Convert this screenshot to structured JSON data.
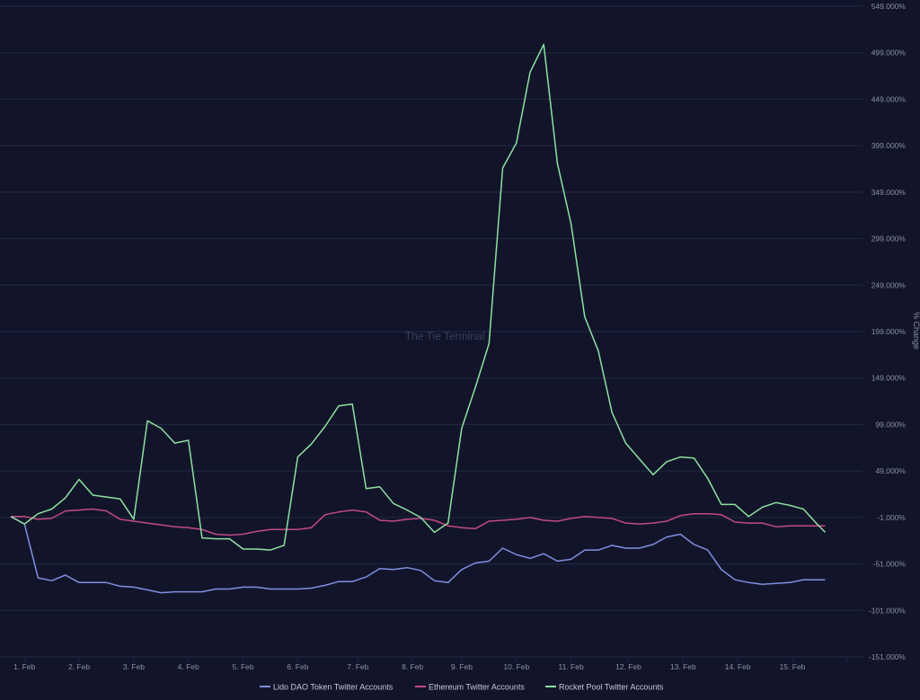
{
  "watermark": "The Tie Terminal",
  "colors": {
    "background": "#12152a",
    "grid": "#232845",
    "tick_text": "#8a8ea6",
    "legend_text": "#c6c8d6",
    "watermark": "#3a3f5c"
  },
  "chart_data": {
    "type": "line",
    "title": "",
    "xlabel": "",
    "ylabel": "% Change",
    "xlim": [
      0,
      15.5
    ],
    "ylim": [
      -151,
      549
    ],
    "y_ticks": [
      549,
      499,
      449,
      399,
      349,
      299,
      249,
      199,
      149,
      99,
      49,
      -1,
      -51,
      -101,
      -151
    ],
    "y_tick_labels": [
      "549.000%",
      "499.000%",
      "449.000%",
      "399.000%",
      "349.000%",
      "299.000%",
      "249.000%",
      "199.000%",
      "149.000%",
      "99.000%",
      "49.000%",
      "-1.000%",
      "-51.000%",
      "-101.000%",
      "-151.000%"
    ],
    "x_ticks": [
      0.25,
      1.25,
      2.25,
      3.25,
      4.25,
      5.25,
      6.35,
      7.35,
      8.25,
      9.25,
      10.25,
      11.3,
      12.3,
      13.3,
      14.3,
      15.3
    ],
    "x_tick_labels": [
      "1. Feb",
      "2. Feb",
      "3. Feb",
      "4. Feb",
      "5. Feb",
      "6. Feb",
      "7. Feb",
      "8. Feb",
      "9. Feb",
      "10. Feb",
      "11. Feb",
      "12. Feb",
      "13. Feb",
      "14. Feb",
      "15. Feb",
      ""
    ],
    "legend_position": "bottom-center",
    "grid": true,
    "series": [
      {
        "name": "Lido DAO Token Twitter Accounts",
        "color": "#7f8fe0",
        "points": [
          [
            0,
            0
          ],
          [
            0.25,
            -8
          ],
          [
            0.5,
            -66
          ],
          [
            0.75,
            -69
          ],
          [
            1.0,
            -63
          ],
          [
            1.25,
            -71
          ],
          [
            1.5,
            -71
          ],
          [
            1.75,
            -71
          ],
          [
            2.0,
            -75
          ],
          [
            2.25,
            -76
          ],
          [
            2.5,
            -79
          ],
          [
            2.75,
            -82
          ],
          [
            3.0,
            -81
          ],
          [
            3.25,
            -81
          ],
          [
            3.5,
            -81
          ],
          [
            3.75,
            -78
          ],
          [
            4.0,
            -78
          ],
          [
            4.25,
            -76
          ],
          [
            4.5,
            -76
          ],
          [
            4.75,
            -78
          ],
          [
            5.0,
            -78
          ],
          [
            5.25,
            -78
          ],
          [
            5.5,
            -77
          ],
          [
            5.75,
            -74
          ],
          [
            6.0,
            -70
          ],
          [
            6.25,
            -70
          ],
          [
            6.5,
            -65
          ],
          [
            6.75,
            -56
          ],
          [
            7.0,
            -57
          ],
          [
            7.25,
            -55
          ],
          [
            7.5,
            -58
          ],
          [
            7.75,
            -69
          ],
          [
            8.0,
            -71
          ],
          [
            8.25,
            -57
          ],
          [
            8.5,
            -50
          ],
          [
            8.75,
            -48
          ],
          [
            9.0,
            -34
          ],
          [
            9.25,
            -41
          ],
          [
            9.5,
            -45
          ],
          [
            9.75,
            -40
          ],
          [
            10.0,
            -48
          ],
          [
            10.25,
            -46
          ],
          [
            10.5,
            -36
          ],
          [
            10.75,
            -36
          ],
          [
            11.0,
            -31
          ],
          [
            11.25,
            -34
          ],
          [
            11.5,
            -34
          ],
          [
            11.75,
            -30
          ],
          [
            12.0,
            -22
          ],
          [
            12.25,
            -19
          ],
          [
            12.5,
            -30
          ],
          [
            12.75,
            -36
          ],
          [
            13.0,
            -57
          ],
          [
            13.25,
            -68
          ],
          [
            13.5,
            -71
          ],
          [
            13.75,
            -73
          ],
          [
            14.0,
            -72
          ],
          [
            14.25,
            -71
          ],
          [
            14.5,
            -68
          ],
          [
            14.75,
            -68
          ],
          [
            14.9,
            -68
          ]
        ]
      },
      {
        "name": "Ethereum Twitter Accounts",
        "color": "#c24a82",
        "points": [
          [
            0,
            0
          ],
          [
            0.25,
            0
          ],
          [
            0.5,
            -3
          ],
          [
            0.75,
            -2
          ],
          [
            1.0,
            6
          ],
          [
            1.25,
            7
          ],
          [
            1.5,
            8
          ],
          [
            1.75,
            6
          ],
          [
            2.0,
            -3
          ],
          [
            2.25,
            -5
          ],
          [
            2.5,
            -7
          ],
          [
            2.75,
            -9
          ],
          [
            3.0,
            -11
          ],
          [
            3.25,
            -12
          ],
          [
            3.5,
            -14
          ],
          [
            3.75,
            -19
          ],
          [
            4.0,
            -20
          ],
          [
            4.25,
            -19
          ],
          [
            4.5,
            -16
          ],
          [
            4.75,
            -14
          ],
          [
            5.0,
            -14
          ],
          [
            5.25,
            -14
          ],
          [
            5.5,
            -12
          ],
          [
            5.75,
            2
          ],
          [
            6.0,
            5
          ],
          [
            6.25,
            7
          ],
          [
            6.5,
            5
          ],
          [
            6.75,
            -4
          ],
          [
            7.0,
            -5
          ],
          [
            7.25,
            -3
          ],
          [
            7.5,
            -2
          ],
          [
            7.75,
            -4
          ],
          [
            8.0,
            -10
          ],
          [
            8.25,
            -12
          ],
          [
            8.5,
            -13
          ],
          [
            8.75,
            -5
          ],
          [
            9.0,
            -4
          ],
          [
            9.25,
            -3
          ],
          [
            9.5,
            -1
          ],
          [
            9.75,
            -4
          ],
          [
            10.0,
            -5
          ],
          [
            10.25,
            -2
          ],
          [
            10.5,
            0
          ],
          [
            10.75,
            -1
          ],
          [
            11.0,
            -2
          ],
          [
            11.25,
            -7
          ],
          [
            11.5,
            -8
          ],
          [
            11.75,
            -7
          ],
          [
            12.0,
            -5
          ],
          [
            12.25,
            1
          ],
          [
            12.5,
            3
          ],
          [
            12.75,
            3
          ],
          [
            13.0,
            2
          ],
          [
            13.25,
            -6
          ],
          [
            13.5,
            -7
          ],
          [
            13.75,
            -7
          ],
          [
            14.0,
            -11
          ],
          [
            14.25,
            -10
          ],
          [
            14.5,
            -10
          ],
          [
            14.75,
            -10
          ],
          [
            14.9,
            -10
          ]
        ]
      },
      {
        "name": "Rocket Pool Twitter Accounts",
        "color": "#8ee0a0",
        "points": [
          [
            0,
            0
          ],
          [
            0.25,
            -8
          ],
          [
            0.5,
            3
          ],
          [
            0.75,
            8
          ],
          [
            1.0,
            20
          ],
          [
            1.25,
            40
          ],
          [
            1.5,
            23
          ],
          [
            1.75,
            21
          ],
          [
            2.0,
            19
          ],
          [
            2.25,
            -3
          ],
          [
            2.5,
            103
          ],
          [
            2.75,
            95
          ],
          [
            3.0,
            79
          ],
          [
            3.25,
            82
          ],
          [
            3.5,
            -23
          ],
          [
            3.75,
            -24
          ],
          [
            4.0,
            -24
          ],
          [
            4.25,
            -35
          ],
          [
            4.5,
            -35
          ],
          [
            4.75,
            -36
          ],
          [
            5.0,
            -31
          ],
          [
            5.25,
            64
          ],
          [
            5.5,
            78
          ],
          [
            5.75,
            97
          ],
          [
            6.0,
            119
          ],
          [
            6.25,
            121
          ],
          [
            6.5,
            30
          ],
          [
            6.75,
            32
          ],
          [
            7.0,
            14
          ],
          [
            7.25,
            7
          ],
          [
            7.5,
            -1
          ],
          [
            7.75,
            -17
          ],
          [
            8.0,
            -7
          ],
          [
            8.25,
            95
          ],
          [
            8.5,
            139
          ],
          [
            8.75,
            186
          ],
          [
            9.0,
            375
          ],
          [
            9.25,
            402
          ],
          [
            9.5,
            478
          ],
          [
            9.75,
            508
          ],
          [
            10.0,
            380
          ],
          [
            10.25,
            315
          ],
          [
            10.5,
            215
          ],
          [
            10.75,
            178
          ],
          [
            11.0,
            112
          ],
          [
            11.25,
            79
          ],
          [
            11.5,
            62
          ],
          [
            11.75,
            45
          ],
          [
            12.0,
            59
          ],
          [
            12.25,
            64
          ],
          [
            12.5,
            63
          ],
          [
            12.75,
            41
          ],
          [
            13.0,
            13
          ],
          [
            13.25,
            13
          ],
          [
            13.5,
            0
          ],
          [
            13.75,
            10
          ],
          [
            14.0,
            15
          ],
          [
            14.25,
            12
          ],
          [
            14.5,
            8
          ],
          [
            14.75,
            -8
          ],
          [
            14.9,
            -17
          ]
        ]
      }
    ]
  }
}
